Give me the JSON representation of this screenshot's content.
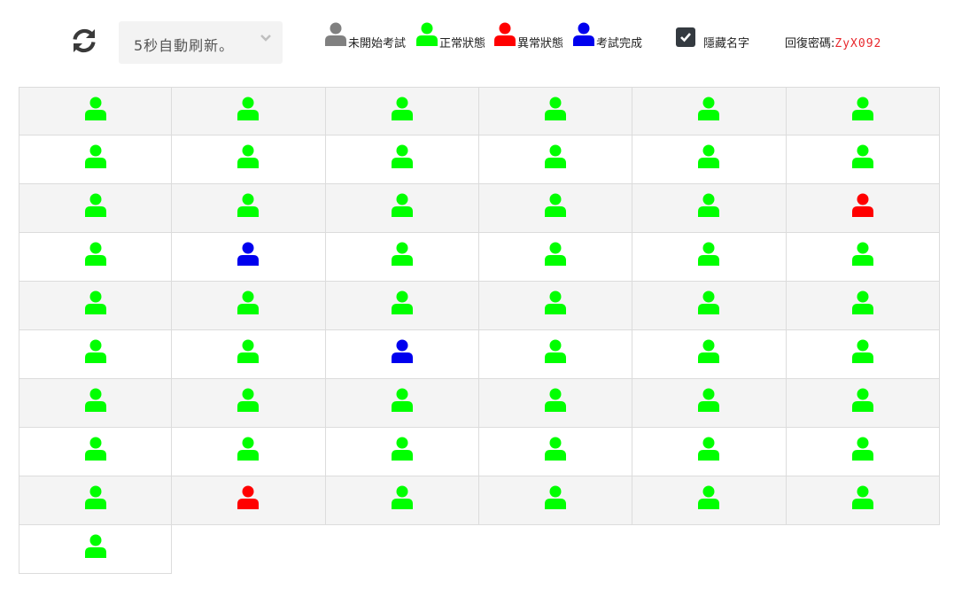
{
  "toolbar": {
    "refresh_icon": "refresh-icon",
    "auto_refresh_select": {
      "selected": "5秒自動刷新。",
      "icon": "chevron-down-icon"
    },
    "legend": [
      {
        "status": "not_started",
        "label": "未開始考試",
        "color": "#808080"
      },
      {
        "status": "normal",
        "label": "正常狀態",
        "color": "#00ff00"
      },
      {
        "status": "abnormal",
        "label": "異常狀態",
        "color": "#ff0000"
      },
      {
        "status": "completed",
        "label": "考試完成",
        "color": "#0000ee"
      }
    ],
    "hide_names": {
      "label": "隱藏名字",
      "checked": true
    },
    "recovery_password": {
      "label": "回復密碼:",
      "value": "ZyX092"
    }
  },
  "colors": {
    "not_started": "#808080",
    "normal": "#00ff00",
    "abnormal": "#ff0000",
    "completed": "#0000ee"
  },
  "students": [
    "normal",
    "normal",
    "normal",
    "normal",
    "normal",
    "normal",
    "normal",
    "normal",
    "normal",
    "normal",
    "normal",
    "normal",
    "normal",
    "normal",
    "normal",
    "normal",
    "normal",
    "abnormal",
    "normal",
    "completed",
    "normal",
    "normal",
    "normal",
    "normal",
    "normal",
    "normal",
    "normal",
    "normal",
    "normal",
    "normal",
    "normal",
    "normal",
    "completed",
    "normal",
    "normal",
    "normal",
    "normal",
    "normal",
    "normal",
    "normal",
    "normal",
    "normal",
    "normal",
    "normal",
    "normal",
    "normal",
    "normal",
    "normal",
    "normal",
    "abnormal",
    "normal",
    "normal",
    "normal",
    "normal",
    "normal"
  ]
}
